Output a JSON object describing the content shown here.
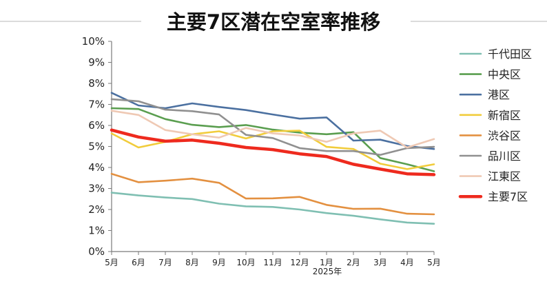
{
  "chart_data": {
    "type": "line",
    "title": "主要7区潜在空室率推移",
    "xlabel": "2025年",
    "ylabel": "",
    "categories": [
      "5月",
      "6月",
      "7月",
      "8月",
      "9月",
      "10月",
      "11月",
      "12月",
      "1月",
      "2月",
      "3月",
      "4月",
      "5月"
    ],
    "ylim": [
      0,
      10
    ],
    "y_ticks": [
      "0%",
      "1%",
      "2%",
      "3%",
      "4%",
      "5%",
      "6%",
      "7%",
      "8%",
      "9%",
      "10%"
    ],
    "grid": false,
    "legend_position": "right",
    "series": [
      {
        "name": "千代田区",
        "color": "#7fbfb2",
        "values": [
          2.8,
          2.67,
          2.57,
          2.5,
          2.28,
          2.15,
          2.12,
          2.0,
          1.83,
          1.7,
          1.53,
          1.38,
          1.32
        ]
      },
      {
        "name": "中央区",
        "color": "#5a9e4f",
        "values": [
          6.82,
          6.78,
          6.3,
          6.03,
          5.92,
          6.02,
          5.8,
          5.66,
          5.58,
          5.68,
          4.45,
          4.15,
          3.82
        ]
      },
      {
        "name": "港区",
        "color": "#4b70a0",
        "values": [
          7.55,
          6.95,
          6.82,
          7.05,
          6.88,
          6.73,
          6.52,
          6.32,
          6.38,
          5.28,
          5.32,
          5.02,
          4.88
        ]
      },
      {
        "name": "新宿区",
        "color": "#f1cc3b",
        "values": [
          5.62,
          4.95,
          5.22,
          5.58,
          5.72,
          5.38,
          5.72,
          5.75,
          4.98,
          4.88,
          4.18,
          3.92,
          4.15
        ]
      },
      {
        "name": "渋谷区",
        "color": "#e39040",
        "values": [
          3.7,
          3.3,
          3.37,
          3.47,
          3.27,
          2.52,
          2.53,
          2.6,
          2.22,
          2.03,
          2.04,
          1.8,
          1.77
        ]
      },
      {
        "name": "品川区",
        "color": "#909090",
        "values": [
          7.25,
          7.15,
          6.75,
          6.68,
          6.52,
          5.55,
          5.4,
          4.92,
          4.78,
          4.78,
          4.6,
          4.92,
          4.98
        ]
      },
      {
        "name": "江東区",
        "color": "#efc9b4",
        "values": [
          6.7,
          6.5,
          5.78,
          5.58,
          5.42,
          5.88,
          5.62,
          5.52,
          5.22,
          5.62,
          5.75,
          4.95,
          5.35
        ]
      },
      {
        "name": "主要7区",
        "color": "#ee2a1e",
        "values": [
          5.78,
          5.45,
          5.25,
          5.3,
          5.15,
          4.95,
          4.85,
          4.65,
          4.52,
          4.15,
          3.92,
          3.7,
          3.66
        ]
      }
    ]
  }
}
